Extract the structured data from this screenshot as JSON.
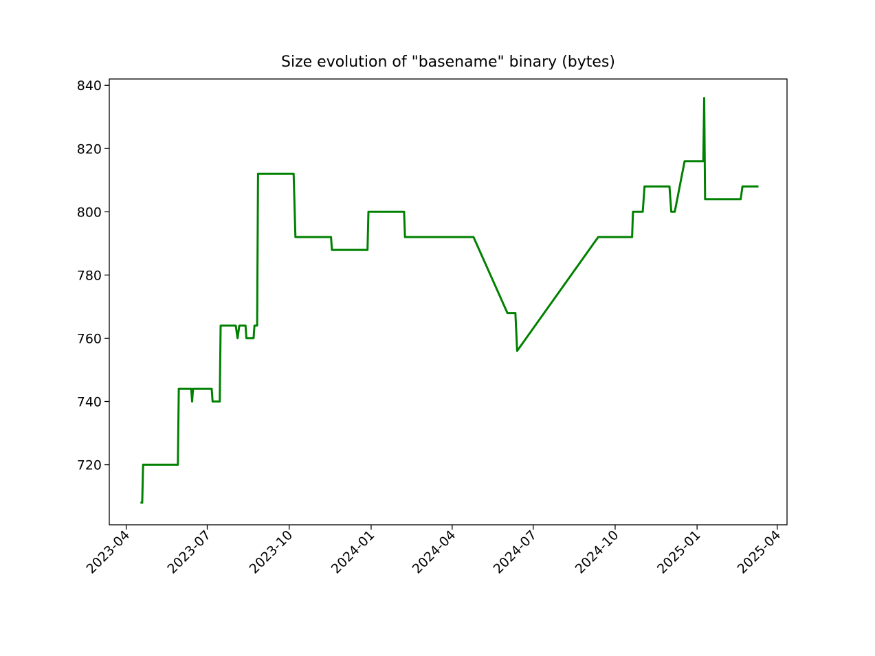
{
  "chart_data": {
    "type": "line",
    "title": "Size evolution of \"basename\" binary (bytes)",
    "xlabel": "",
    "ylabel": "",
    "x_axis": "date",
    "xlim": [
      "2023-03-13",
      "2025-04-12"
    ],
    "ylim": [
      701,
      842
    ],
    "grid": false,
    "x_ticks": [
      "2023-04",
      "2023-07",
      "2023-10",
      "2024-01",
      "2024-04",
      "2024-07",
      "2024-10",
      "2025-01",
      "2025-04"
    ],
    "y_ticks": [
      720,
      740,
      760,
      780,
      800,
      820,
      840
    ],
    "series": [
      {
        "color": "#008000",
        "points": [
          [
            "2023-04-17",
            708
          ],
          [
            "2023-04-19",
            708
          ],
          [
            "2023-04-20",
            720
          ],
          [
            "2023-05-29",
            720
          ],
          [
            "2023-05-30",
            744
          ],
          [
            "2023-06-13",
            744
          ],
          [
            "2023-06-14",
            740
          ],
          [
            "2023-06-15",
            744
          ],
          [
            "2023-07-06",
            744
          ],
          [
            "2023-07-07",
            740
          ],
          [
            "2023-07-15",
            740
          ],
          [
            "2023-07-16",
            764
          ],
          [
            "2023-08-02",
            764
          ],
          [
            "2023-08-04",
            760
          ],
          [
            "2023-08-06",
            764
          ],
          [
            "2023-08-13",
            764
          ],
          [
            "2023-08-14",
            760
          ],
          [
            "2023-08-22",
            760
          ],
          [
            "2023-08-23",
            764
          ],
          [
            "2023-08-26",
            764
          ],
          [
            "2023-08-27",
            812
          ],
          [
            "2023-10-06",
            812
          ],
          [
            "2023-10-08",
            792
          ],
          [
            "2023-11-17",
            792
          ],
          [
            "2023-11-18",
            788
          ],
          [
            "2023-12-28",
            788
          ],
          [
            "2023-12-29",
            800
          ],
          [
            "2024-02-07",
            800
          ],
          [
            "2024-02-08",
            792
          ],
          [
            "2024-04-25",
            792
          ],
          [
            "2024-06-02",
            768
          ],
          [
            "2024-06-11",
            768
          ],
          [
            "2024-06-13",
            756
          ],
          [
            "2024-09-12",
            792
          ],
          [
            "2024-10-20",
            792
          ],
          [
            "2024-10-21",
            800
          ],
          [
            "2024-11-01",
            800
          ],
          [
            "2024-11-03",
            808
          ],
          [
            "2024-12-01",
            808
          ],
          [
            "2024-12-03",
            800
          ],
          [
            "2024-12-07",
            800
          ],
          [
            "2024-12-18",
            816
          ],
          [
            "2025-01-08",
            816
          ],
          [
            "2025-01-09",
            836
          ],
          [
            "2025-01-10",
            804
          ],
          [
            "2025-02-19",
            804
          ],
          [
            "2025-02-21",
            808
          ],
          [
            "2025-03-11",
            808
          ]
        ]
      }
    ]
  }
}
